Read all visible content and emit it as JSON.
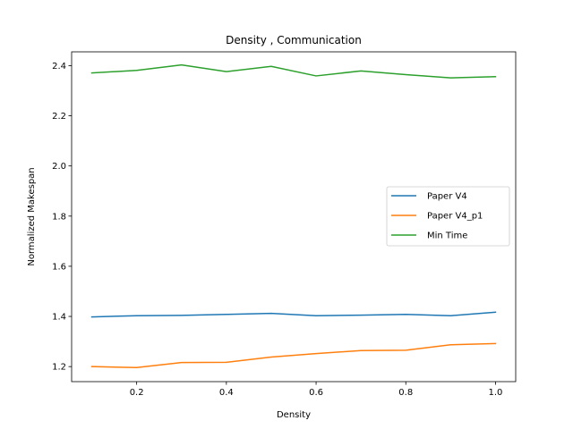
{
  "chart_data": {
    "type": "line",
    "title": "Density , Communication",
    "xlabel": "Density",
    "ylabel": "Normalized Makespan",
    "xlim": [
      0.055,
      1.045
    ],
    "ylim": [
      1.14,
      2.455
    ],
    "xticks": [
      0.2,
      0.4,
      0.6,
      0.8,
      1.0
    ],
    "xtick_labels": [
      "0.2",
      "0.4",
      "0.6",
      "0.8",
      "1.0"
    ],
    "yticks": [
      1.2,
      1.4,
      1.6,
      1.8,
      2.0,
      2.2,
      2.4
    ],
    "ytick_labels": [
      "1.2",
      "1.4",
      "1.6",
      "1.8",
      "2.0",
      "2.2",
      "2.4"
    ],
    "grid": false,
    "legend_position": "center-right",
    "x": [
      0.1,
      0.2,
      0.3,
      0.4,
      0.5,
      0.6,
      0.7,
      0.8,
      0.9,
      1.0
    ],
    "series": [
      {
        "name": "Paper V4",
        "color": "#1f77b4",
        "values": [
          1.398,
          1.403,
          1.404,
          1.408,
          1.412,
          1.403,
          1.405,
          1.408,
          1.403,
          1.417
        ]
      },
      {
        "name": "Paper V4_p1",
        "color": "#ff7f0e",
        "values": [
          1.2,
          1.196,
          1.216,
          1.217,
          1.238,
          1.252,
          1.264,
          1.265,
          1.287,
          1.292
        ]
      },
      {
        "name": "Min Time",
        "color": "#2ca02c",
        "values": [
          2.371,
          2.381,
          2.403,
          2.376,
          2.397,
          2.359,
          2.379,
          2.364,
          2.351,
          2.356
        ]
      }
    ]
  }
}
